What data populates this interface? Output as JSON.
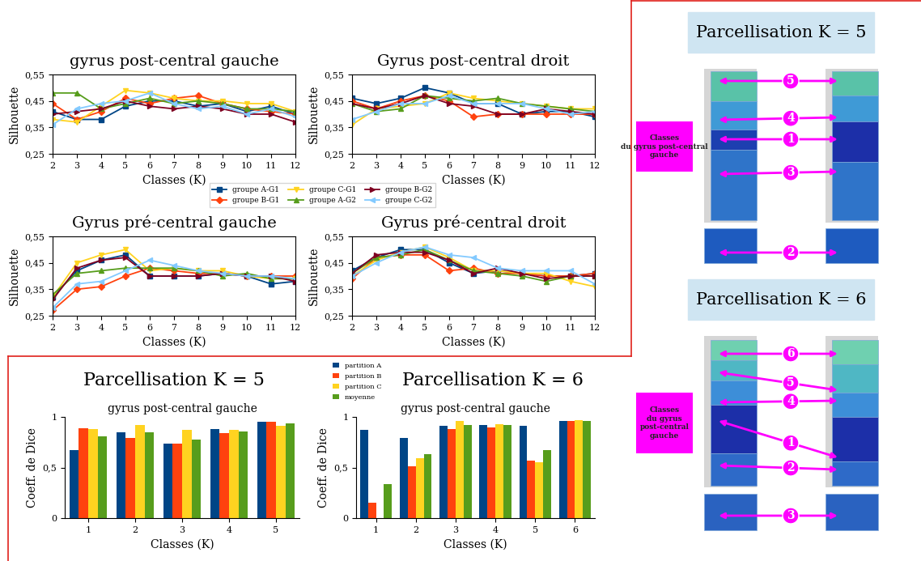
{
  "chart_data": [
    {
      "type": "line",
      "title": "gyrus post-central gauche",
      "x_label": "Classes (K)",
      "y_label": "Silhouette",
      "x": [
        2,
        3,
        4,
        5,
        6,
        7,
        8,
        9,
        10,
        11,
        12
      ],
      "xlim": [
        2,
        12
      ],
      "xticks": [
        2,
        3,
        4,
        5,
        6,
        7,
        8,
        9,
        10,
        11,
        12
      ],
      "ylim": [
        0.25,
        0.55
      ],
      "yticks": [
        {
          "value": 0.25,
          "label": "0,25"
        },
        {
          "value": 0.35,
          "label": "0,35"
        },
        {
          "value": 0.45,
          "label": "0,45"
        },
        {
          "value": 0.55,
          "label": "0,55"
        }
      ],
      "series": [
        {
          "name": "groupe A-G1",
          "color": "#004586",
          "marker": "square",
          "values": [
            0.41,
            0.38,
            0.38,
            0.43,
            0.45,
            0.45,
            0.43,
            0.44,
            0.41,
            0.43,
            0.4
          ]
        },
        {
          "name": "groupe B-G1",
          "color": "#ff420e",
          "marker": "diamond",
          "values": [
            0.44,
            0.38,
            0.41,
            0.46,
            0.44,
            0.46,
            0.47,
            0.44,
            0.42,
            0.41,
            0.4
          ]
        },
        {
          "name": "groupe C-G1",
          "color": "#ffd320",
          "marker": "triangle_down",
          "values": [
            0.38,
            0.37,
            0.43,
            0.49,
            0.48,
            0.46,
            0.45,
            0.45,
            0.44,
            0.44,
            0.41
          ]
        },
        {
          "name": "groupe A-G2",
          "color": "#579d1c",
          "marker": "triangle_up",
          "values": [
            0.48,
            0.48,
            0.42,
            0.44,
            0.46,
            0.44,
            0.45,
            0.44,
            0.42,
            0.42,
            0.41
          ]
        },
        {
          "name": "groupe B-G2",
          "color": "#7e0021",
          "marker": "triangle_right",
          "values": [
            0.4,
            0.41,
            0.42,
            0.45,
            0.43,
            0.42,
            0.43,
            0.42,
            0.4,
            0.4,
            0.37
          ]
        },
        {
          "name": "groupe C-G2",
          "color": "#83caff",
          "marker": "triangle_left",
          "values": [
            0.36,
            0.42,
            0.44,
            0.45,
            0.48,
            0.44,
            0.42,
            0.43,
            0.4,
            0.42,
            0.39
          ]
        }
      ]
    },
    {
      "type": "line",
      "title": "Gyrus post-central droit",
      "x_label": "Classes (K)",
      "y_label": "Silhouette",
      "x": [
        2,
        3,
        4,
        5,
        6,
        7,
        8,
        9,
        10,
        11,
        12
      ],
      "xlim": [
        2,
        12
      ],
      "xticks": [
        2,
        3,
        4,
        5,
        6,
        7,
        8,
        9,
        10,
        11,
        12
      ],
      "ylim": [
        0.25,
        0.55
      ],
      "yticks": [
        {
          "value": 0.25,
          "label": "0,25"
        },
        {
          "value": 0.35,
          "label": "0,35"
        },
        {
          "value": 0.45,
          "label": "0,45"
        },
        {
          "value": 0.55,
          "label": "0,55"
        }
      ],
      "series": [
        {
          "name": "groupe A-G1",
          "color": "#004586",
          "marker": "square",
          "values": [
            0.46,
            0.44,
            0.46,
            0.5,
            0.48,
            0.44,
            0.44,
            0.4,
            0.41,
            0.41,
            0.39
          ]
        },
        {
          "name": "groupe B-G1",
          "color": "#ff420e",
          "marker": "diamond",
          "values": [
            0.45,
            0.42,
            0.45,
            0.47,
            0.45,
            0.39,
            0.4,
            0.4,
            0.4,
            0.4,
            0.4
          ]
        },
        {
          "name": "groupe C-G1",
          "color": "#ffd320",
          "marker": "triangle_down",
          "values": [
            0.36,
            0.42,
            0.43,
            0.44,
            0.48,
            0.46,
            0.45,
            0.44,
            0.43,
            0.42,
            0.42
          ]
        },
        {
          "name": "groupe A-G2",
          "color": "#579d1c",
          "marker": "triangle_up",
          "values": [
            0.44,
            0.41,
            0.42,
            0.47,
            0.46,
            0.45,
            0.46,
            0.44,
            0.43,
            0.42,
            0.41
          ]
        },
        {
          "name": "groupe B-G2",
          "color": "#7e0021",
          "marker": "triangle_right",
          "values": [
            0.44,
            0.42,
            0.44,
            0.47,
            0.44,
            0.43,
            0.4,
            0.4,
            0.42,
            0.41,
            0.4
          ]
        },
        {
          "name": "groupe C-G2",
          "color": "#83caff",
          "marker": "triangle_left",
          "values": [
            0.38,
            0.41,
            0.44,
            0.44,
            0.47,
            0.44,
            0.44,
            0.44,
            0.42,
            0.4,
            0.41
          ]
        }
      ]
    },
    {
      "type": "line",
      "title": "Gyrus pré-central gauche",
      "x_label": "Classes (K)",
      "y_label": "Silhouette",
      "x": [
        2,
        3,
        4,
        5,
        6,
        7,
        8,
        9,
        10,
        11,
        12
      ],
      "xlim": [
        2,
        12
      ],
      "xticks": [
        2,
        3,
        4,
        5,
        6,
        7,
        8,
        9,
        10,
        11,
        12
      ],
      "ylim": [
        0.25,
        0.55
      ],
      "yticks": [
        {
          "value": 0.25,
          "label": "0,25"
        },
        {
          "value": 0.35,
          "label": "0,35"
        },
        {
          "value": 0.45,
          "label": "0,45"
        },
        {
          "value": 0.55,
          "label": "0,55"
        }
      ],
      "series": [
        {
          "name": "groupe A-G1",
          "color": "#004586",
          "marker": "square",
          "values": [
            0.32,
            0.42,
            0.46,
            0.48,
            0.4,
            0.4,
            0.4,
            0.41,
            0.4,
            0.37,
            0.38
          ]
        },
        {
          "name": "groupe B-G1",
          "color": "#ff420e",
          "marker": "diamond",
          "values": [
            0.27,
            0.35,
            0.36,
            0.4,
            0.43,
            0.42,
            0.41,
            0.41,
            0.4,
            0.4,
            0.4
          ]
        },
        {
          "name": "groupe C-G1",
          "color": "#ffd320",
          "marker": "triangle_down",
          "values": [
            0.32,
            0.45,
            0.48,
            0.5,
            0.42,
            0.43,
            0.42,
            0.42,
            0.4,
            0.39,
            0.39
          ]
        },
        {
          "name": "groupe A-G2",
          "color": "#579d1c",
          "marker": "triangle_up",
          "values": [
            0.33,
            0.41,
            0.42,
            0.43,
            0.43,
            0.43,
            0.42,
            0.4,
            0.41,
            0.39,
            0.39
          ]
        },
        {
          "name": "groupe B-G2",
          "color": "#7e0021",
          "marker": "triangle_right",
          "values": [
            0.31,
            0.43,
            0.46,
            0.47,
            0.4,
            0.4,
            0.4,
            0.41,
            0.4,
            0.4,
            0.38
          ]
        },
        {
          "name": "groupe C-G2",
          "color": "#83caff",
          "marker": "triangle_left",
          "values": [
            0.28,
            0.37,
            0.38,
            0.42,
            0.46,
            0.44,
            0.42,
            0.41,
            0.4,
            0.4,
            0.39
          ]
        }
      ]
    },
    {
      "type": "line",
      "title": "Gyrus pré-central droit",
      "x_label": "Classes (K)",
      "y_label": "Silhouette",
      "x": [
        2,
        3,
        4,
        5,
        6,
        7,
        8,
        9,
        10,
        11,
        12
      ],
      "xlim": [
        2,
        12
      ],
      "xticks": [
        2,
        3,
        4,
        5,
        6,
        7,
        8,
        9,
        10,
        11,
        12
      ],
      "ylim": [
        0.25,
        0.55
      ],
      "yticks": [
        {
          "value": 0.25,
          "label": "0,25"
        },
        {
          "value": 0.35,
          "label": "0,35"
        },
        {
          "value": 0.45,
          "label": "0,45"
        },
        {
          "value": 0.55,
          "label": "0,55"
        }
      ],
      "series": [
        {
          "name": "groupe A-G1",
          "color": "#004586",
          "marker": "square",
          "values": [
            0.42,
            0.47,
            0.5,
            0.5,
            0.45,
            0.41,
            0.42,
            0.41,
            0.4,
            0.4,
            0.41
          ]
        },
        {
          "name": "groupe B-G1",
          "color": "#ff420e",
          "marker": "diamond",
          "values": [
            0.39,
            0.47,
            0.48,
            0.48,
            0.42,
            0.43,
            0.41,
            0.41,
            0.4,
            0.4,
            0.41
          ]
        },
        {
          "name": "groupe C-G1",
          "color": "#ffd320",
          "marker": "triangle_down",
          "values": [
            0.4,
            0.46,
            0.49,
            0.51,
            0.47,
            0.42,
            0.42,
            0.41,
            0.41,
            0.38,
            0.36
          ]
        },
        {
          "name": "groupe A-G2",
          "color": "#579d1c",
          "marker": "triangle_up",
          "values": [
            0.41,
            0.47,
            0.48,
            0.5,
            0.46,
            0.42,
            0.41,
            0.4,
            0.38,
            0.4,
            0.4
          ]
        },
        {
          "name": "groupe B-G2",
          "color": "#7e0021",
          "marker": "triangle_right",
          "values": [
            0.41,
            0.48,
            0.49,
            0.49,
            0.46,
            0.41,
            0.43,
            0.41,
            0.39,
            0.4,
            0.4
          ]
        },
        {
          "name": "groupe C-G2",
          "color": "#83caff",
          "marker": "triangle_left",
          "values": [
            0.4,
            0.45,
            0.49,
            0.51,
            0.48,
            0.47,
            0.43,
            0.42,
            0.42,
            0.42,
            0.37
          ]
        }
      ]
    },
    {
      "type": "bar",
      "title": "Parcellisation K = 5",
      "subtitle": "gyrus post-central gauche",
      "x_label": "Classes (K)",
      "y_label": "Coeff. de Dice",
      "categories": [
        "1",
        "2",
        "3",
        "4",
        "5"
      ],
      "ylim": [
        0,
        1
      ],
      "yticks": [
        0,
        {
          "value": 0.5,
          "label": "0,5"
        },
        1
      ],
      "series": [
        {
          "name": "partition A",
          "color": "#004586",
          "values": [
            0.67,
            0.85,
            0.74,
            0.88,
            0.95
          ]
        },
        {
          "name": "partition B",
          "color": "#ff420e",
          "values": [
            0.89,
            0.79,
            0.74,
            0.84,
            0.95
          ]
        },
        {
          "name": "partition C",
          "color": "#ffd320",
          "values": [
            0.88,
            0.92,
            0.87,
            0.87,
            0.91
          ]
        },
        {
          "name": "moyenne",
          "color": "#579d1c",
          "values": [
            0.81,
            0.85,
            0.78,
            0.86,
            0.94
          ]
        }
      ]
    },
    {
      "type": "bar",
      "title": "Parcellisation K = 6",
      "subtitle": "gyrus post-central gauche",
      "x_label": "Classes (K)",
      "y_label": "Coeff. de Dice",
      "categories": [
        "1",
        "2",
        "3",
        "4",
        "5",
        "6"
      ],
      "ylim": [
        0,
        1
      ],
      "yticks": [
        0,
        {
          "value": 0.5,
          "label": "0,5"
        },
        1
      ],
      "series": [
        {
          "name": "partition A",
          "color": "#004586",
          "values": [
            0.87,
            0.79,
            0.91,
            0.92,
            0.91,
            0.96
          ]
        },
        {
          "name": "partition B",
          "color": "#ff420e",
          "values": [
            0.15,
            0.51,
            0.88,
            0.9,
            0.57,
            0.96
          ]
        },
        {
          "name": "partition C",
          "color": "#ffd320",
          "values": [
            0,
            0.59,
            0.96,
            0.93,
            0.55,
            0.97
          ]
        },
        {
          "name": "moyenne",
          "color": "#579d1c",
          "values": [
            0.34,
            0.63,
            0.92,
            0.92,
            0.67,
            0.96
          ]
        }
      ]
    }
  ],
  "diagram": [
    {
      "title": "Parcellisation K = 5",
      "side_label": "Classes\ndu gyrus post-central\ngauche",
      "arrows": [
        "5",
        "4",
        "1",
        "3",
        "2"
      ]
    },
    {
      "title": "Parcellisation K = 6",
      "side_label": "Classes\ndu gyrus\npost-central\ngauche",
      "arrows": [
        "6",
        "5",
        "4",
        "1",
        "2",
        "3"
      ]
    }
  ]
}
